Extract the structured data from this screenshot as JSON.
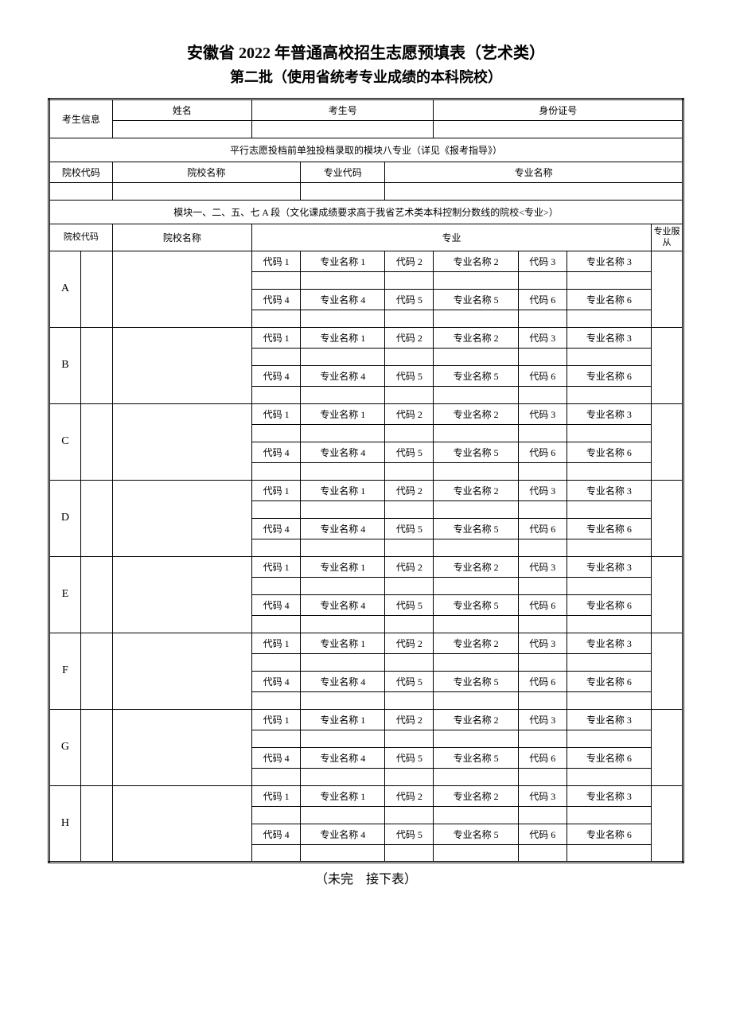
{
  "title": "安徽省 2022 年普通高校招生志愿预填表（艺术类）",
  "subtitle": "第二批（使用省统考专业成绩的本科院校）",
  "student_info": {
    "label": "考生信息",
    "name_label": "姓名",
    "exam_no_label": "考生号",
    "id_no_label": "身份证号"
  },
  "section1": {
    "header": "平行志愿投档前单独投档录取的模块八专业（详见《报考指导》）",
    "school_code": "院校代码",
    "school_name": "院校名称",
    "major_code": "专业代码",
    "major_name": "专业名称"
  },
  "section2": {
    "header": "模块一、二、五、七 A 段（文化课成绩要求高于我省艺术类本科控制分数线的院校<专业>）",
    "school_code": "院校代码",
    "school_name": "院校名称",
    "major": "专业",
    "major_obey": "专业服从"
  },
  "rows": [
    "A",
    "B",
    "C",
    "D",
    "E",
    "F",
    "G",
    "H"
  ],
  "code_labels": {
    "c1": "代码 1",
    "n1": "专业名称 1",
    "c2": "代码 2",
    "n2": "专业名称 2",
    "c3": "代码 3",
    "n3": "专业名称 3",
    "c4": "代码 4",
    "n4": "专业名称 4",
    "c5": "代码 5",
    "n5": "专业名称 5",
    "c6": "代码 6",
    "n6": "专业名称 6"
  },
  "footer": "（未完　接下表）",
  "colors": {
    "background": "#ffffff",
    "border": "#000000",
    "text": "#000000"
  }
}
